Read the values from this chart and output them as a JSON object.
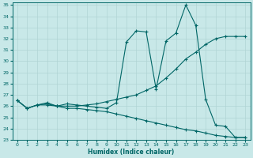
{
  "xlabel": "Humidex (Indice chaleur)",
  "bg_color": "#c8e8e8",
  "grid_color": "#b0d4d4",
  "line_color": "#006666",
  "xlim": [
    -0.5,
    23.5
  ],
  "ylim": [
    23,
    35.2
  ],
  "xticks": [
    0,
    1,
    2,
    3,
    4,
    5,
    6,
    7,
    8,
    9,
    10,
    11,
    12,
    13,
    14,
    15,
    16,
    17,
    18,
    19,
    20,
    21,
    22,
    23
  ],
  "yticks": [
    23,
    24,
    25,
    26,
    27,
    28,
    29,
    30,
    31,
    32,
    33,
    34,
    35
  ],
  "line1_x": [
    0,
    1,
    2,
    3,
    4,
    5,
    6,
    7,
    8,
    9,
    10,
    11,
    12,
    13,
    14,
    15,
    16,
    17,
    18,
    19,
    20,
    21,
    22,
    23
  ],
  "line1_y": [
    26.5,
    25.8,
    26.1,
    26.2,
    26.0,
    26.2,
    26.1,
    26.0,
    25.9,
    25.8,
    26.3,
    31.7,
    32.7,
    32.6,
    27.5,
    31.8,
    32.5,
    35.0,
    33.2,
    26.6,
    24.3,
    24.2,
    23.2,
    23.2
  ],
  "line2_x": [
    0,
    1,
    2,
    3,
    4,
    5,
    6,
    7,
    8,
    9,
    10,
    11,
    12,
    13,
    14,
    15,
    16,
    17,
    18,
    19,
    20,
    21,
    22,
    23
  ],
  "line2_y": [
    26.5,
    25.8,
    26.1,
    26.3,
    26.0,
    26.0,
    26.0,
    26.1,
    26.2,
    26.4,
    26.6,
    26.8,
    27.0,
    27.4,
    27.8,
    28.5,
    29.3,
    30.2,
    30.8,
    31.5,
    32.0,
    32.2,
    32.2,
    32.2
  ],
  "line3_x": [
    0,
    1,
    2,
    3,
    4,
    5,
    6,
    7,
    8,
    9,
    10,
    11,
    12,
    13,
    14,
    15,
    16,
    17,
    18,
    19,
    20,
    21,
    22,
    23
  ],
  "line3_y": [
    26.5,
    25.8,
    26.1,
    26.1,
    26.0,
    25.8,
    25.8,
    25.7,
    25.6,
    25.5,
    25.3,
    25.1,
    24.9,
    24.7,
    24.5,
    24.3,
    24.1,
    23.9,
    23.8,
    23.6,
    23.4,
    23.3,
    23.2,
    23.2
  ]
}
